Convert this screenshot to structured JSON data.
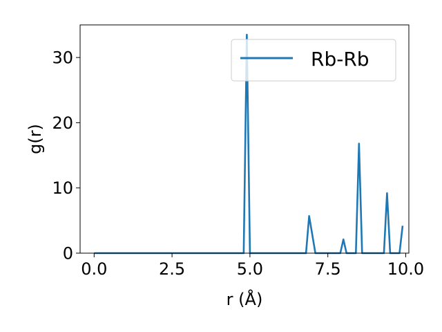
{
  "chart_data": {
    "type": "line",
    "xlabel": "r (Å)",
    "ylabel": "g(r)",
    "xlim": [
      -0.45,
      10.1
    ],
    "ylim": [
      0,
      35
    ],
    "xticks": [
      0.0,
      2.5,
      5.0,
      7.5,
      10.0
    ],
    "xtick_labels": [
      "0.0",
      "2.5",
      "5.0",
      "7.5",
      "10.0"
    ],
    "yticks": [
      0,
      10,
      20,
      30
    ],
    "ytick_labels": [
      "0",
      "10",
      "20",
      "30"
    ],
    "grid": false,
    "legend_position": "top-right",
    "color": "#1f77b4",
    "series": [
      {
        "name": "Rb-Rb",
        "x": [
          0.0,
          4.8,
          4.9,
          5.0,
          6.8,
          6.9,
          7.1,
          7.9,
          8.0,
          8.1,
          8.4,
          8.5,
          8.6,
          9.3,
          9.4,
          9.5,
          9.8,
          9.9
        ],
        "y": [
          0,
          0,
          33.5,
          0,
          0,
          5.7,
          0,
          0,
          2.1,
          0,
          0,
          16.8,
          0,
          0,
          9.2,
          0,
          0,
          4.2
        ]
      }
    ]
  }
}
